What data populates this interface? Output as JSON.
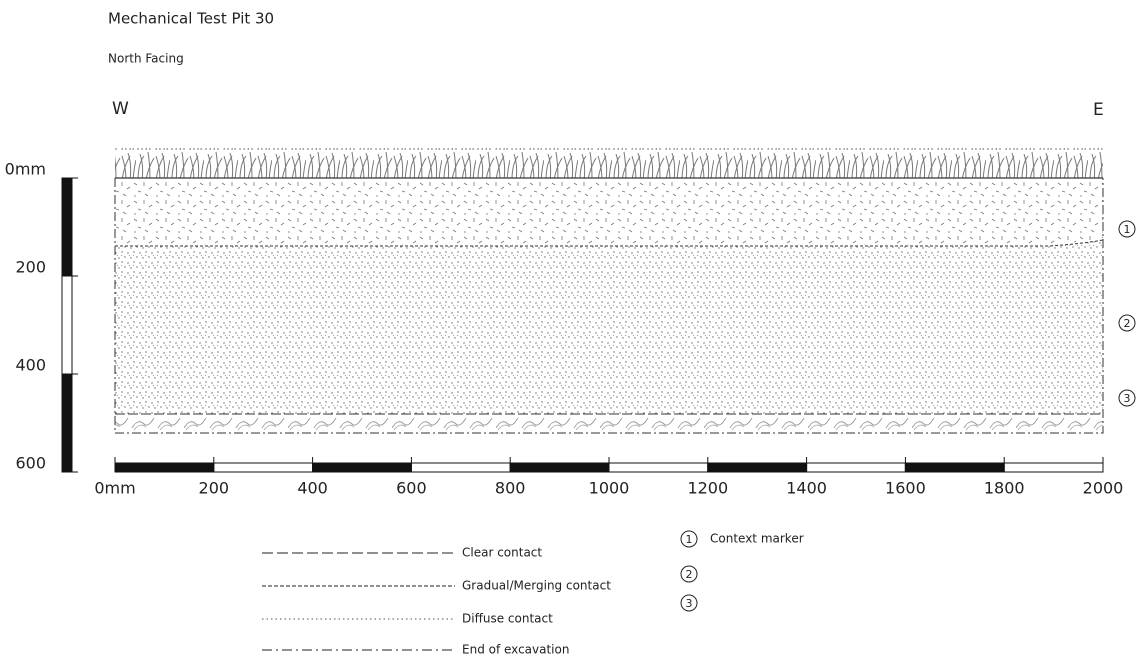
{
  "title": "Mechanical Test Pit 30",
  "subtitle": "North Facing",
  "orientation": {
    "left": "W",
    "right": "E"
  },
  "vertical_scale": {
    "labels": [
      "0mm",
      "200",
      "400",
      "600"
    ]
  },
  "horizontal_scale": {
    "labels": [
      "0mm",
      "200",
      "400",
      "600",
      "800",
      "1000",
      "1200",
      "1400",
      "1600",
      "1800",
      "2000"
    ]
  },
  "context_markers": [
    "1",
    "2",
    "3"
  ],
  "legend": {
    "lines": [
      {
        "label": "Clear contact"
      },
      {
        "label": "Gradual/Merging contact"
      },
      {
        "label": "Diffuse contact"
      },
      {
        "label": "End of excavation"
      }
    ],
    "markers": [
      {
        "number": "1",
        "label": "Context marker"
      },
      {
        "number": "2"
      },
      {
        "number": "3"
      }
    ]
  }
}
